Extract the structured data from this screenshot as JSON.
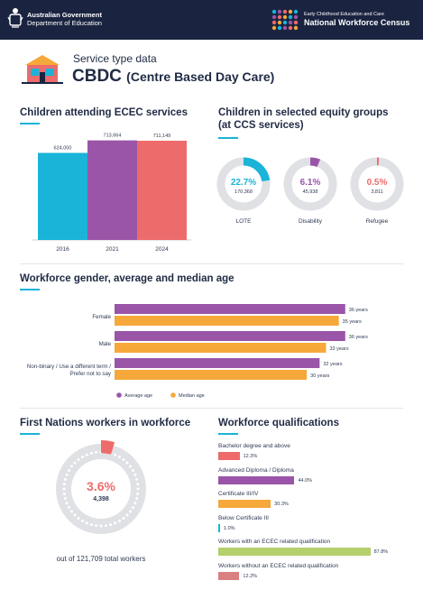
{
  "header": {
    "gov_line1": "Australian Government",
    "gov_line2": "Department of Education",
    "census_line1": "Early Childhood Education and Care",
    "census_line2": "National Workforce Census"
  },
  "service": {
    "subtitle": "Service type data",
    "title_short": "CBDC",
    "title_full": "(Centre Based Day Care)"
  },
  "sections": {
    "attending": "Children attending ECEC services",
    "equity_line1": "Children in selected equity groups",
    "equity_line2": "(at CCS services)",
    "workforce": "Workforce gender, average and median age",
    "first_nations": "First Nations workers in workforce",
    "qualifications": "Workforce qualifications"
  },
  "colors": {
    "navy": "#1a2440",
    "cyan": "#19b4d8",
    "purple": "#9a55a8",
    "coral": "#ee6b6b",
    "orange": "#f6a83a",
    "green": "#b4cf6c",
    "grey": "#dfe1e5"
  },
  "chart_data": [
    {
      "type": "bar",
      "title": "Children attending ECEC services",
      "categories": [
        "2016",
        "2021",
        "2024"
      ],
      "values": [
        624000,
        713664,
        711149
      ],
      "value_labels": [
        "624,000",
        "713,664",
        "711,149"
      ],
      "colors": [
        "#19b4d8",
        "#9a55a8",
        "#ee6b6b"
      ],
      "ylim": [
        0,
        750000
      ]
    },
    {
      "type": "pie",
      "title": "Children in selected equity groups (at CCS services)",
      "items": [
        {
          "name": "LOTE",
          "percent": 22.7,
          "label": "22.7%",
          "count": "170,368",
          "color": "#19b4d8"
        },
        {
          "name": "Disability",
          "percent": 6.1,
          "label": "6.1%",
          "count": "45,938",
          "color": "#9a55a8"
        },
        {
          "name": "Refugee",
          "percent": 0.5,
          "label": "0.5%",
          "count": "3,811",
          "color": "#ee6b6b"
        }
      ]
    },
    {
      "type": "bar",
      "orientation": "horizontal",
      "title": "Workforce gender, average and median age",
      "categories": [
        "Female",
        "Male",
        "Non-binary / Use a different term / Prefer not to say"
      ],
      "series": [
        {
          "name": "Average age",
          "values": [
            36,
            36,
            32
          ],
          "labels": [
            "36 years",
            "36 years",
            "32 years"
          ],
          "color": "#9a55a8"
        },
        {
          "name": "Median age",
          "values": [
            35,
            33,
            30
          ],
          "labels": [
            "35 years",
            "33 years",
            "30 years"
          ],
          "color": "#f6a83a"
        }
      ],
      "xlim": [
        0,
        38
      ]
    },
    {
      "type": "pie",
      "title": "First Nations workers in workforce",
      "percent": 3.6,
      "percent_label": "3.6%",
      "count": "4,398",
      "caption": "out of 121,709 total workers",
      "color": "#ee6b6b"
    },
    {
      "type": "bar",
      "orientation": "horizontal",
      "title": "Workforce qualifications",
      "categories": [
        "Bachelor degree and above",
        "Advanced Diploma / Diploma",
        "Certificate III/IV",
        "Below Certificate III",
        "Workers with an ECEC related qualification",
        "Workers without an ECEC related qualification"
      ],
      "values": [
        12.3,
        44.0,
        30.3,
        1.0,
        87.8,
        12.2
      ],
      "value_labels": [
        "12.3%",
        "44.0%",
        "30.3%",
        "1.0%",
        "87.8%",
        "12.2%"
      ],
      "colors": [
        "#ee6b6b",
        "#9a55a8",
        "#f6a83a",
        "#19b4d8",
        "#b4cf6c",
        "#d98080"
      ],
      "xlim": [
        0,
        100
      ]
    }
  ]
}
